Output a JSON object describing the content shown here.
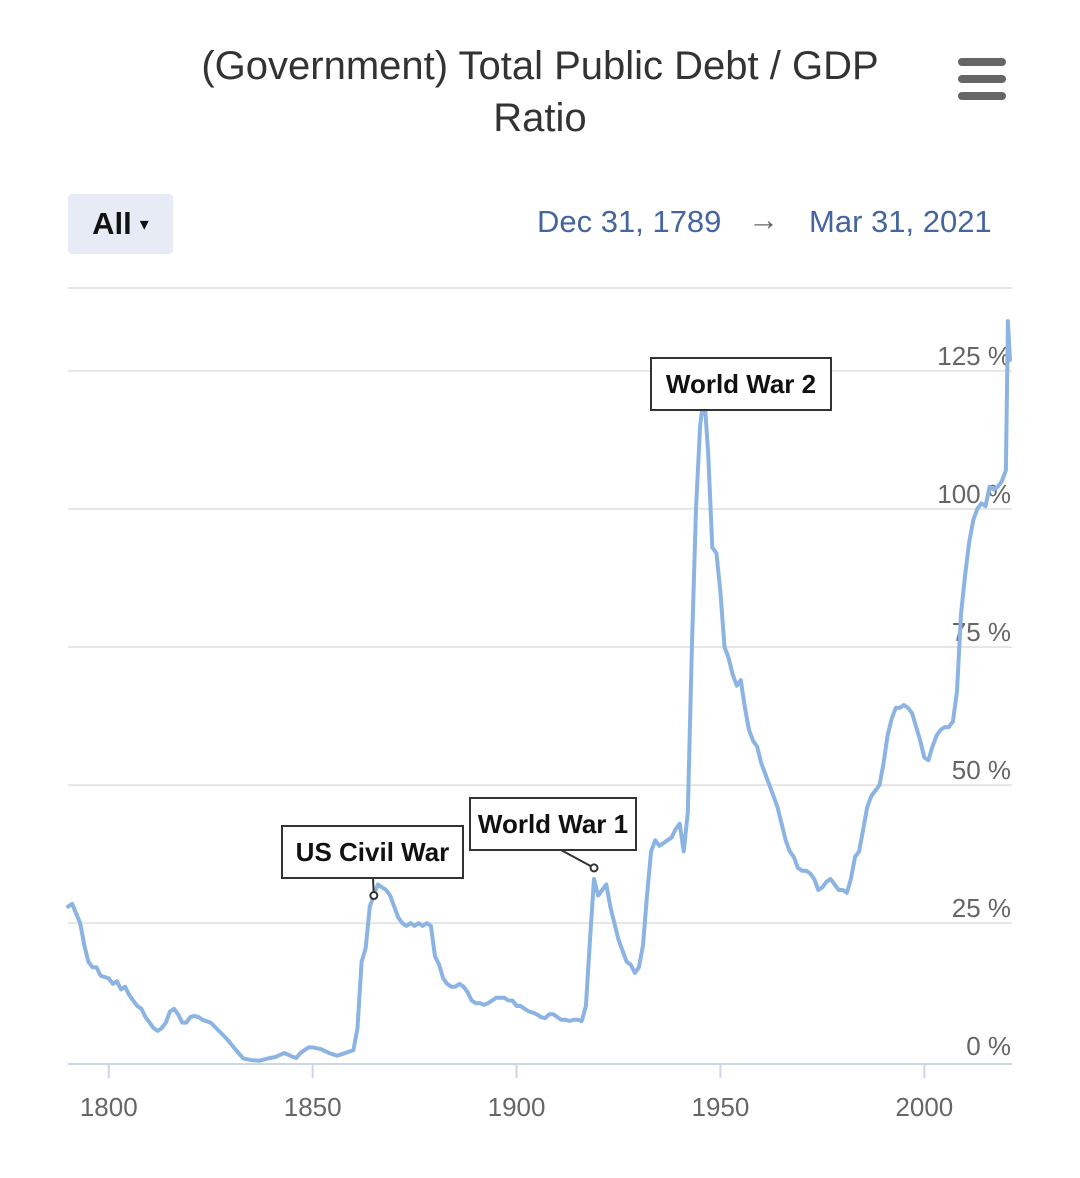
{
  "header": {
    "title_line1": "(Government) Total Public Debt / GDP",
    "title_line2": "Ratio",
    "menu_icon": "hamburger-menu-icon"
  },
  "range_selector": {
    "label": "All",
    "arrow": "▾"
  },
  "date_range": {
    "start": "Dec 31, 1789",
    "arrow": "→",
    "end": "Mar 31, 2021"
  },
  "colors": {
    "line": "#8cb4e2",
    "grid": "#e6e6e6",
    "axis_text": "#666666",
    "date_text": "#44659e"
  },
  "chart_data": {
    "type": "line",
    "title": "(Government) Total Public Debt / GDP Ratio",
    "xlim": [
      1790,
      2021.5
    ],
    "ylim": [
      -0.5,
      140
    ],
    "x_ticks": [
      1800,
      1850,
      1900,
      1950,
      2000
    ],
    "x_tick_labels": [
      "1800",
      "1850",
      "1900",
      "1950",
      "2000"
    ],
    "y_ticks": [
      0,
      25,
      50,
      75,
      100,
      125
    ],
    "y_tick_labels": [
      "0 %",
      "25 %",
      "50 %",
      "75 %",
      "100 %",
      "125 %"
    ],
    "grid": true,
    "series": [
      {
        "values": [
          [
            1790,
            28
          ],
          [
            1791,
            28.5
          ],
          [
            1793,
            25
          ],
          [
            1794,
            21
          ],
          [
            1795,
            18
          ],
          [
            1796,
            17
          ],
          [
            1797,
            17
          ],
          [
            1798,
            15.5
          ],
          [
            1800,
            15
          ],
          [
            1801,
            14
          ],
          [
            1802,
            14.5
          ],
          [
            1803,
            13
          ],
          [
            1804,
            13.5
          ],
          [
            1805,
            12
          ],
          [
            1806,
            11
          ],
          [
            1807,
            10
          ],
          [
            1808,
            9.5
          ],
          [
            1809,
            8
          ],
          [
            1810,
            7
          ],
          [
            1811,
            6
          ],
          [
            1812,
            5.5
          ],
          [
            1813,
            6
          ],
          [
            1814,
            7
          ],
          [
            1815,
            9
          ],
          [
            1816,
            9.5
          ],
          [
            1817,
            8.5
          ],
          [
            1818,
            7
          ],
          [
            1819,
            7
          ],
          [
            1820,
            8
          ],
          [
            1821,
            8.2
          ],
          [
            1822,
            8
          ],
          [
            1823,
            7.5
          ],
          [
            1825,
            7
          ],
          [
            1827,
            5.5
          ],
          [
            1829,
            4
          ],
          [
            1831,
            2.2
          ],
          [
            1833,
            0.5
          ],
          [
            1835,
            0.2
          ],
          [
            1837,
            0.1
          ],
          [
            1839,
            0.5
          ],
          [
            1841,
            0.8
          ],
          [
            1843,
            1.5
          ],
          [
            1844,
            1.2
          ],
          [
            1845,
            0.8
          ],
          [
            1846,
            0.6
          ],
          [
            1847,
            1.5
          ],
          [
            1848,
            2
          ],
          [
            1849,
            2.5
          ],
          [
            1850,
            2.5
          ],
          [
            1852,
            2.2
          ],
          [
            1854,
            1.5
          ],
          [
            1856,
            1
          ],
          [
            1858,
            1.5
          ],
          [
            1860,
            2
          ],
          [
            1861,
            6
          ],
          [
            1862,
            18
          ],
          [
            1863,
            20.5
          ],
          [
            1864,
            28
          ],
          [
            1865,
            30
          ],
          [
            1866,
            32
          ],
          [
            1867,
            31.5
          ],
          [
            1868,
            31
          ],
          [
            1869,
            30
          ],
          [
            1870,
            28
          ],
          [
            1871,
            26
          ],
          [
            1872,
            25
          ],
          [
            1873,
            24.5
          ],
          [
            1874,
            25
          ],
          [
            1875,
            24.5
          ],
          [
            1876,
            25
          ],
          [
            1877,
            24.5
          ],
          [
            1878,
            25
          ],
          [
            1879,
            24.5
          ],
          [
            1880,
            19
          ],
          [
            1881,
            17.5
          ],
          [
            1882,
            15
          ],
          [
            1883,
            14
          ],
          [
            1884,
            13.5
          ],
          [
            1885,
            13.5
          ],
          [
            1886,
            14
          ],
          [
            1887,
            13.5
          ],
          [
            1888,
            12.5
          ],
          [
            1889,
            11
          ],
          [
            1890,
            10.5
          ],
          [
            1891,
            10.5
          ],
          [
            1892,
            10.2
          ],
          [
            1893,
            10.5
          ],
          [
            1894,
            11
          ],
          [
            1895,
            11.5
          ],
          [
            1896,
            11.5
          ],
          [
            1897,
            11.5
          ],
          [
            1898,
            11
          ],
          [
            1899,
            11
          ],
          [
            1900,
            10
          ],
          [
            1901,
            10
          ],
          [
            1902,
            9.5
          ],
          [
            1903,
            9
          ],
          [
            1904,
            8.8
          ],
          [
            1905,
            8.5
          ],
          [
            1906,
            8
          ],
          [
            1907,
            7.8
          ],
          [
            1908,
            8.5
          ],
          [
            1909,
            8.5
          ],
          [
            1910,
            8
          ],
          [
            1911,
            7.5
          ],
          [
            1912,
            7.5
          ],
          [
            1913,
            7.3
          ],
          [
            1914,
            7.5
          ],
          [
            1915,
            7.5
          ],
          [
            1916,
            7.3
          ],
          [
            1917,
            10
          ],
          [
            1918,
            22
          ],
          [
            1919,
            33
          ],
          [
            1920,
            30
          ],
          [
            1921,
            31
          ],
          [
            1922,
            32
          ],
          [
            1923,
            28
          ],
          [
            1924,
            25
          ],
          [
            1925,
            22
          ],
          [
            1926,
            20
          ],
          [
            1927,
            18
          ],
          [
            1928,
            17.5
          ],
          [
            1929,
            16
          ],
          [
            1930,
            17
          ],
          [
            1931,
            21
          ],
          [
            1932,
            30
          ],
          [
            1933,
            38
          ],
          [
            1934,
            40
          ],
          [
            1935,
            39
          ],
          [
            1936,
            39.5
          ],
          [
            1937,
            40
          ],
          [
            1938,
            40.5
          ],
          [
            1939,
            42
          ],
          [
            1940,
            43
          ],
          [
            1941,
            38
          ],
          [
            1942,
            45
          ],
          [
            1943,
            75
          ],
          [
            1944,
            100
          ],
          [
            1945,
            115
          ],
          [
            1946,
            121
          ],
          [
            1947,
            110
          ],
          [
            1948,
            93
          ],
          [
            1949,
            92
          ],
          [
            1950,
            85
          ],
          [
            1951,
            75
          ],
          [
            1952,
            73
          ],
          [
            1953,
            70
          ],
          [
            1954,
            68
          ],
          [
            1955,
            69
          ],
          [
            1956,
            64
          ],
          [
            1957,
            60
          ],
          [
            1958,
            58
          ],
          [
            1959,
            57
          ],
          [
            1960,
            54
          ],
          [
            1961,
            52
          ],
          [
            1962,
            50
          ],
          [
            1963,
            48
          ],
          [
            1964,
            46
          ],
          [
            1965,
            43
          ],
          [
            1966,
            40
          ],
          [
            1967,
            38
          ],
          [
            1968,
            37
          ],
          [
            1969,
            35
          ],
          [
            1970,
            34.5
          ],
          [
            1971,
            34.5
          ],
          [
            1972,
            34
          ],
          [
            1973,
            33
          ],
          [
            1974,
            31
          ],
          [
            1975,
            31.5
          ],
          [
            1976,
            32.5
          ],
          [
            1977,
            33
          ],
          [
            1978,
            32
          ],
          [
            1979,
            31
          ],
          [
            1980,
            31
          ],
          [
            1981,
            30.5
          ],
          [
            1982,
            33
          ],
          [
            1983,
            37
          ],
          [
            1984,
            38
          ],
          [
            1985,
            42
          ],
          [
            1986,
            46
          ],
          [
            1987,
            48
          ],
          [
            1988,
            49
          ],
          [
            1989,
            50
          ],
          [
            1990,
            54
          ],
          [
            1991,
            59
          ],
          [
            1992,
            62
          ],
          [
            1993,
            64
          ],
          [
            1994,
            64
          ],
          [
            1995,
            64.5
          ],
          [
            1996,
            64
          ],
          [
            1997,
            63
          ],
          [
            1998,
            60.5
          ],
          [
            1999,
            58
          ],
          [
            2000,
            55
          ],
          [
            2001,
            54.5
          ],
          [
            2002,
            57
          ],
          [
            2003,
            59
          ],
          [
            2004,
            60
          ],
          [
            2005,
            60.5
          ],
          [
            2006,
            60.5
          ],
          [
            2007,
            61.5
          ],
          [
            2008,
            67
          ],
          [
            2009,
            81
          ],
          [
            2010,
            88
          ],
          [
            2011,
            94
          ],
          [
            2012,
            98
          ],
          [
            2013,
            100
          ],
          [
            2014,
            101
          ],
          [
            2015,
            100.5
          ],
          [
            2016,
            104
          ],
          [
            2017,
            103.5
          ],
          [
            2018,
            104
          ],
          [
            2019,
            105
          ],
          [
            2020,
            107
          ],
          [
            2020.5,
            134
          ],
          [
            2021,
            127
          ]
        ]
      }
    ],
    "annotations": [
      {
        "text": "US Civil War",
        "x": 1865,
        "y": 30
      },
      {
        "text": "World War 1",
        "x": 1919,
        "y": 35
      },
      {
        "text": "World War 2",
        "x": 1946.5,
        "y": 121
      }
    ]
  }
}
